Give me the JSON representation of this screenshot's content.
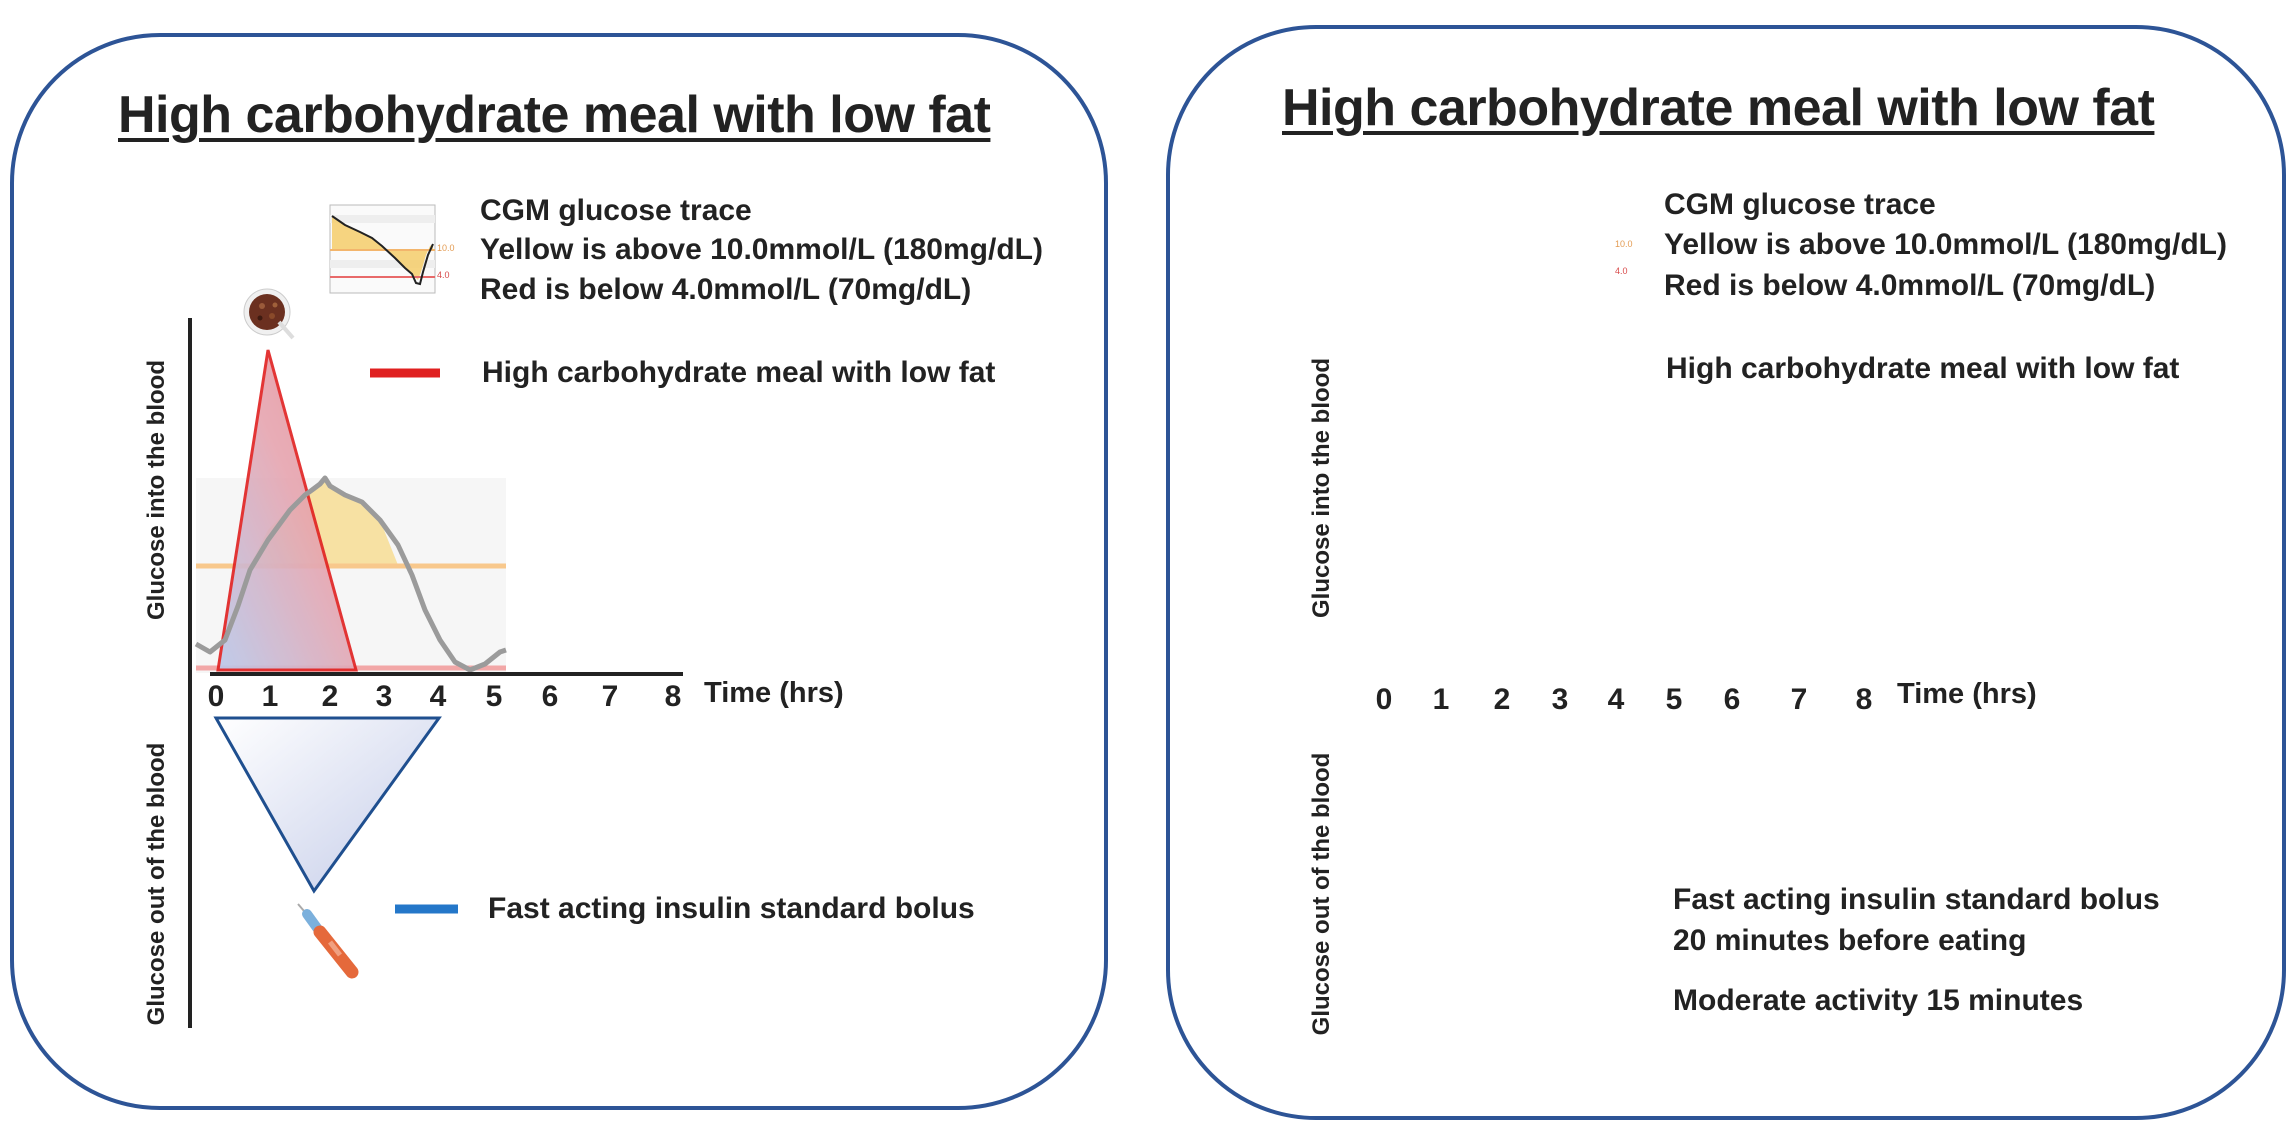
{
  "panels": [
    {
      "title": "High carbohydrate meal with low fat",
      "cgm_legend": {
        "title": "CGM glucose trace",
        "yellow": "Yellow is above 10.0mmol/L  (180mg/dL)",
        "red": "Red is below 4.0mmol/L  (70mg/dL)",
        "thumb_high": "10.0",
        "thumb_low": "4.0"
      },
      "y_axis_top": "Glucose into the blood",
      "y_axis_bottom": "Glucose out of the blood",
      "x_axis_label": "Time (hrs)",
      "x_ticks": [
        "0",
        "1",
        "2",
        "3",
        "4",
        "5",
        "6",
        "7",
        "8"
      ],
      "legend": [
        {
          "color": "#e02020",
          "label": "High carbohydrate meal with low fat"
        },
        {
          "color": "#2477c9",
          "label": "Fast acting insulin standard bolus"
        }
      ]
    },
    {
      "title": "High carbohydrate meal with low fat",
      "cgm_legend": {
        "title": "CGM glucose trace",
        "yellow": "Yellow is above 10.0mmol/L  (180mg/dL)",
        "red": "Red is below 4.0mmol/L  (70mg/dL)",
        "thumb_high": "10.0",
        "thumb_low": "4.0"
      },
      "y_axis_top": "Glucose into the blood",
      "y_axis_bottom": "Glucose out of the blood",
      "x_axis_label": "Time (hrs)",
      "x_ticks": [
        "0",
        "1",
        "2",
        "3",
        "4",
        "5",
        "6",
        "7",
        "8"
      ],
      "legend": [
        {
          "color": "#e02020",
          "label": "High carbohydrate meal with low fat"
        },
        {
          "color": "#2477c9",
          "label": "Fast acting insulin standard bolus"
        },
        {
          "color": "#4f7f35",
          "label": "Moderate activity 15 minutes"
        }
      ],
      "insulin_note": "20 minutes before eating"
    }
  ],
  "colors": {
    "border": "#2d5496",
    "meal_red": "#e02020",
    "insulin_blue": "#2477c9",
    "activity_green": "#4f7f35",
    "cgm_yellow": "#f5d27a",
    "cgm_red_line": "#e98a8a"
  },
  "icons": [
    "food-bowl-icon",
    "insulin-pen-icon",
    "walking-person-icon"
  ]
}
